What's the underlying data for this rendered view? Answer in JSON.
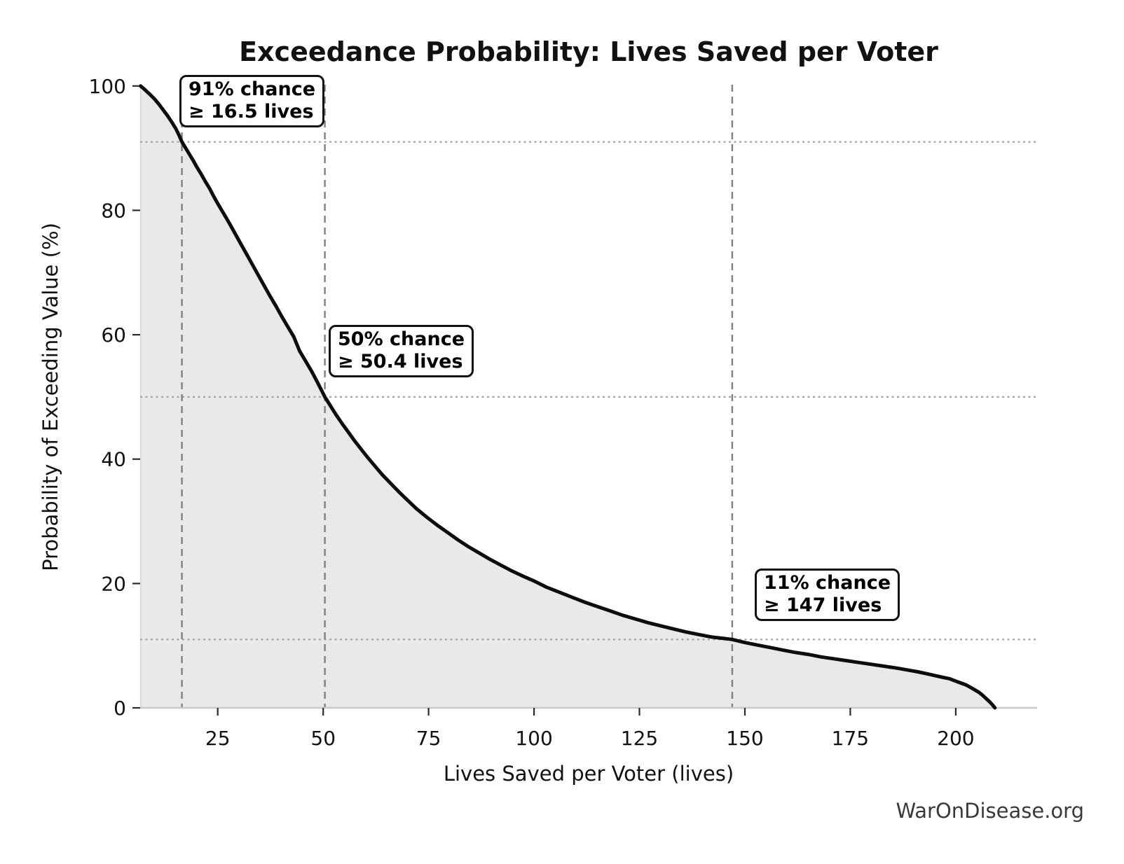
{
  "footer": {
    "watermark": "WarOnDisease.org"
  },
  "chart_data": {
    "type": "line",
    "title": "Exceedance Probability: Lives Saved per Voter",
    "xlabel": "Lives Saved per Voter (lives)",
    "ylabel": "Probability of Exceeding Value (%)",
    "xlim": [
      6.6,
      219.3
    ],
    "ylim": [
      0,
      100.2
    ],
    "x_ticks": [
      25,
      50,
      75,
      100,
      125,
      150,
      175,
      200
    ],
    "y_ticks": [
      0,
      20,
      40,
      60,
      80,
      100
    ],
    "grid": "off",
    "legend": "none",
    "style": {
      "line_color": "#0d0d0d",
      "fill_color": "#e9e9e9",
      "fill_edge_color": "#d4d4d4",
      "dashed_line_color": "#808080",
      "dotted_line_color": "#a0a0a0",
      "spine_color": "#c9c9c9",
      "tick_color": "#2b2b2b",
      "text_color": "#111111",
      "annotation_border_color": "#111111",
      "watermark_color": "#3a3a3a"
    },
    "reference_lines": {
      "vertical_dashed_x": [
        16.5,
        50.4,
        147
      ],
      "horizontal_dotted_y": [
        91,
        50,
        11
      ]
    },
    "annotations": [
      {
        "line1": "91% chance",
        "line2": "≥ 16.5 lives",
        "anchor_value": 16.5,
        "anchor_probability": 91
      },
      {
        "line1": "50% chance",
        "line2": "≥ 50.4 lives",
        "anchor_value": 50.4,
        "anchor_probability": 50
      },
      {
        "line1": "11% chance",
        "line2": "≥ 147 lives",
        "anchor_value": 147,
        "anchor_probability": 11
      }
    ],
    "series": [
      {
        "name": "exceedance-curve",
        "points": [
          [
            6.7,
            100
          ],
          [
            7.4,
            99.6
          ],
          [
            8.2,
            99.1
          ],
          [
            9,
            98.6
          ],
          [
            10,
            97.9
          ],
          [
            11,
            97.1
          ],
          [
            12,
            96.2
          ],
          [
            13,
            95.3
          ],
          [
            14,
            94.3
          ],
          [
            15,
            93.2
          ],
          [
            15.8,
            92.1
          ],
          [
            16.5,
            91
          ],
          [
            17.4,
            90
          ],
          [
            18.3,
            89
          ],
          [
            19.2,
            88
          ],
          [
            20.1,
            86.9
          ],
          [
            21,
            85.9
          ],
          [
            22,
            84.7
          ],
          [
            23,
            83.6
          ],
          [
            24,
            82.3
          ],
          [
            25,
            81.1
          ],
          [
            26.3,
            79.6
          ],
          [
            27.6,
            78.1
          ],
          [
            29,
            76.4
          ],
          [
            30.4,
            74.7
          ],
          [
            31.8,
            73
          ],
          [
            33.2,
            71.3
          ],
          [
            34.6,
            69.6
          ],
          [
            36,
            67.9
          ],
          [
            37.4,
            66.2
          ],
          [
            38.8,
            64.6
          ],
          [
            40.2,
            62.9
          ],
          [
            41.6,
            61.3
          ],
          [
            43,
            59.7
          ],
          [
            44.4,
            57.4
          ],
          [
            45.8,
            55.8
          ],
          [
            47.2,
            54.2
          ],
          [
            48.6,
            52.4
          ],
          [
            49.5,
            51.2
          ],
          [
            50.4,
            50
          ],
          [
            51.5,
            48.8
          ],
          [
            53,
            47.2
          ],
          [
            54.5,
            45.7
          ],
          [
            56,
            44.3
          ],
          [
            57.5,
            42.9
          ],
          [
            59,
            41.6
          ],
          [
            60.5,
            40.3
          ],
          [
            62,
            39.1
          ],
          [
            64,
            37.5
          ],
          [
            66,
            36.1
          ],
          [
            68,
            34.7
          ],
          [
            70,
            33.4
          ],
          [
            72,
            32.1
          ],
          [
            74.5,
            30.7
          ],
          [
            77,
            29.4
          ],
          [
            79.5,
            28.2
          ],
          [
            82,
            27
          ],
          [
            84.5,
            25.9
          ],
          [
            87,
            24.9
          ],
          [
            89.5,
            23.9
          ],
          [
            92,
            23
          ],
          [
            94.5,
            22.1
          ],
          [
            97,
            21.3
          ],
          [
            100,
            20.4
          ],
          [
            103,
            19.4
          ],
          [
            106,
            18.6
          ],
          [
            109,
            17.8
          ],
          [
            112,
            17
          ],
          [
            115,
            16.3
          ],
          [
            118,
            15.6
          ],
          [
            121,
            14.9
          ],
          [
            124,
            14.3
          ],
          [
            127,
            13.7
          ],
          [
            130,
            13.2
          ],
          [
            133,
            12.7
          ],
          [
            136,
            12.2
          ],
          [
            139,
            11.8
          ],
          [
            142,
            11.4
          ],
          [
            144.5,
            11.2
          ],
          [
            147,
            11
          ],
          [
            150,
            10.5
          ],
          [
            153,
            10.1
          ],
          [
            156,
            9.7
          ],
          [
            159,
            9.3
          ],
          [
            162,
            8.9
          ],
          [
            165,
            8.6
          ],
          [
            168,
            8.2
          ],
          [
            171,
            7.9
          ],
          [
            174,
            7.6
          ],
          [
            177,
            7.3
          ],
          [
            180,
            7
          ],
          [
            183,
            6.7
          ],
          [
            186,
            6.4
          ],
          [
            188.5,
            6.1
          ],
          [
            191,
            5.8
          ],
          [
            193,
            5.5
          ],
          [
            195,
            5.2
          ],
          [
            197,
            4.9
          ],
          [
            198.5,
            4.7
          ],
          [
            200,
            4.3
          ],
          [
            201.2,
            4
          ],
          [
            202.4,
            3.7
          ],
          [
            203.5,
            3.3
          ],
          [
            204.5,
            2.9
          ],
          [
            205.5,
            2.5
          ],
          [
            206.4,
            2
          ],
          [
            207.2,
            1.5
          ],
          [
            208,
            1
          ],
          [
            208.7,
            0.5
          ],
          [
            209.3,
            0
          ]
        ]
      }
    ]
  }
}
